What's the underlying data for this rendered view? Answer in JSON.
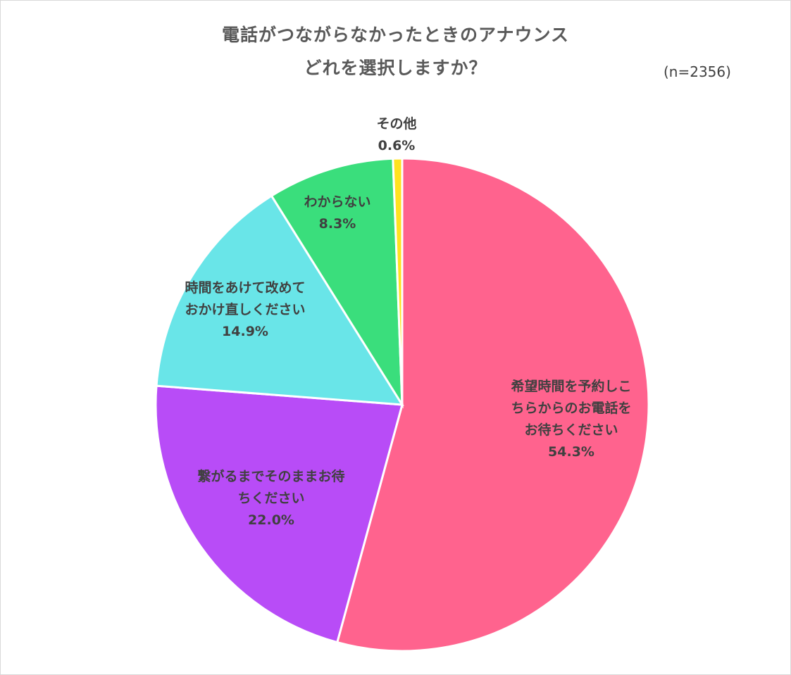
{
  "chart_data": {
    "type": "pie",
    "title": "電話がつながらなかったときのアナウンス",
    "subtitle": "どれを選択しますか？",
    "sample_size": "(n=2356)",
    "unit": "%",
    "slices": [
      {
        "label_lines": [
          "希望時間を予約しこ",
          "ちらからのお電話を",
          "お待ちください"
        ],
        "value": 54.3,
        "value_label": "54.3%",
        "color": "#ff638e"
      },
      {
        "label_lines": [
          "繋がるまでそのままお待",
          "ちください"
        ],
        "value": 22.0,
        "value_label": "22.0%",
        "color": "#b84cf7"
      },
      {
        "label_lines": [
          "時間をあけて改めて",
          "おかけ直しください"
        ],
        "value": 14.9,
        "value_label": "14.9%",
        "color": "#69e5e8"
      },
      {
        "label_lines": [
          "わからない"
        ],
        "value": 8.3,
        "value_label": "8.3%",
        "color": "#3ade7c"
      },
      {
        "label_lines": [
          "その他"
        ],
        "value": 0.6,
        "value_label": "0.6%",
        "color": "#ffe21f"
      }
    ],
    "start": "12 o'clock",
    "direction": "clockwise",
    "legend": "none"
  }
}
